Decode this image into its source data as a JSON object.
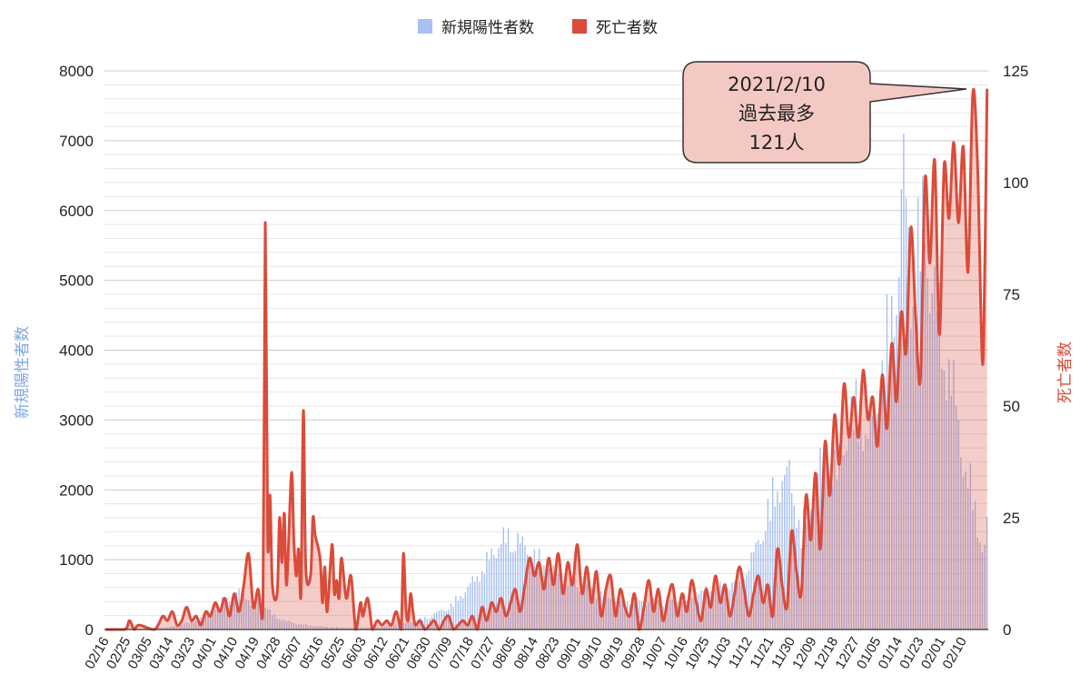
{
  "chart_data": {
    "type": "bar+line",
    "title": "",
    "legend": {
      "placement": "top-center",
      "items": [
        {
          "name": "新規陽性者数",
          "color": "#a9c1f2"
        },
        {
          "name": "死亡者数",
          "color": "#db4b3a"
        }
      ]
    },
    "y_left": {
      "label": "新規陽性者数",
      "color": "#7fa6e6",
      "min": 0,
      "max": 8000,
      "ticks": [
        "0",
        "1000",
        "2000",
        "3000",
        "4000",
        "5000",
        "6000",
        "7000",
        "8000"
      ]
    },
    "y_right": {
      "label": "死亡者数",
      "color": "#db4b3a",
      "min": 0,
      "max": 125,
      "ticks": [
        "0",
        "25",
        "50",
        "75",
        "100",
        "125"
      ]
    },
    "x_ticks": [
      "02/16",
      "02/25",
      "03/05",
      "03/14",
      "03/23",
      "04/01",
      "04/10",
      "04/19",
      "04/28",
      "05/07",
      "05/16",
      "05/25",
      "06/03",
      "06/12",
      "06/21",
      "06/30",
      "07/09",
      "07/18",
      "07/27",
      "08/05",
      "08/14",
      "08/23",
      "09/01",
      "09/10",
      "09/19",
      "09/28",
      "10/07",
      "10/16",
      "10/25",
      "11/03",
      "11/12",
      "11/21",
      "11/30",
      "12/09",
      "12/18",
      "12/27",
      "01/05",
      "01/14",
      "01/23",
      "02/01",
      "02/10"
    ],
    "grid": true,
    "series": [
      {
        "name": "新規陽性者数",
        "axis": "left",
        "chart": "bar",
        "anchors": [
          [
            0,
            0
          ],
          [
            12,
            5
          ],
          [
            22,
            25
          ],
          [
            30,
            60
          ],
          [
            38,
            150
          ],
          [
            45,
            350
          ],
          [
            52,
            550
          ],
          [
            58,
            650
          ],
          [
            62,
            400
          ],
          [
            65,
            500
          ],
          [
            70,
            250
          ],
          [
            75,
            150
          ],
          [
            80,
            100
          ],
          [
            88,
            60
          ],
          [
            95,
            40
          ],
          [
            105,
            30
          ],
          [
            115,
            40
          ],
          [
            125,
            100
          ],
          [
            135,
            200
          ],
          [
            145,
            400
          ],
          [
            152,
            700
          ],
          [
            158,
            1000
          ],
          [
            164,
            1400
          ],
          [
            168,
            1550
          ],
          [
            173,
            1500
          ],
          [
            178,
            1300
          ],
          [
            184,
            1100
          ],
          [
            190,
            950
          ],
          [
            197,
            800
          ],
          [
            205,
            620
          ],
          [
            215,
            500
          ],
          [
            225,
            470
          ],
          [
            235,
            450
          ],
          [
            245,
            560
          ],
          [
            252,
            650
          ],
          [
            258,
            700
          ],
          [
            262,
            770
          ],
          [
            266,
            900
          ],
          [
            270,
            1100
          ],
          [
            273,
            1350
          ],
          [
            276,
            1700
          ],
          [
            279,
            2100
          ],
          [
            282,
            2450
          ],
          [
            287,
            2600
          ],
          [
            292,
            1600
          ],
          [
            297,
            2400
          ],
          [
            303,
            3000
          ],
          [
            307,
            2600
          ],
          [
            311,
            3400
          ],
          [
            314,
            3600
          ],
          [
            317,
            3800
          ],
          [
            319,
            3200
          ],
          [
            322,
            3400
          ],
          [
            325,
            4200
          ],
          [
            327,
            4600
          ],
          [
            329,
            5000
          ],
          [
            331,
            5600
          ],
          [
            333,
            6200
          ],
          [
            334,
            7000
          ],
          [
            335,
            7600
          ],
          [
            336,
            7200
          ],
          [
            338,
            5800
          ],
          [
            340,
            6200
          ],
          [
            342,
            6600
          ],
          [
            344,
            6900
          ],
          [
            346,
            6000
          ],
          [
            349,
            5400
          ],
          [
            352,
            4700
          ],
          [
            355,
            4200
          ],
          [
            358,
            3500
          ],
          [
            361,
            2600
          ],
          [
            364,
            2300
          ],
          [
            366,
            1800
          ],
          [
            368,
            1400
          ],
          [
            369,
            1300
          ],
          [
            370,
            1800
          ]
        ]
      },
      {
        "name": "死亡者数",
        "axis": "right",
        "chart": "line-area",
        "points": [
          [
            0,
            0
          ],
          [
            8,
            0
          ],
          [
            10,
            2
          ],
          [
            12,
            0
          ],
          [
            14,
            1
          ],
          [
            20,
            0
          ],
          [
            22,
            1
          ],
          [
            24,
            3
          ],
          [
            26,
            2
          ],
          [
            28,
            4
          ],
          [
            30,
            1
          ],
          [
            32,
            2
          ],
          [
            34,
            5
          ],
          [
            36,
            2
          ],
          [
            38,
            3
          ],
          [
            40,
            1
          ],
          [
            42,
            4
          ],
          [
            44,
            3
          ],
          [
            46,
            6
          ],
          [
            48,
            4
          ],
          [
            50,
            7
          ],
          [
            52,
            3
          ],
          [
            54,
            8
          ],
          [
            56,
            4
          ],
          [
            58,
            10
          ],
          [
            60,
            17
          ],
          [
            62,
            5
          ],
          [
            64,
            9
          ],
          [
            66,
            3
          ],
          [
            67,
            91
          ],
          [
            68,
            20
          ],
          [
            69,
            30
          ],
          [
            70,
            10
          ],
          [
            72,
            8
          ],
          [
            73,
            25
          ],
          [
            74,
            15
          ],
          [
            75,
            26
          ],
          [
            76,
            10
          ],
          [
            78,
            35
          ],
          [
            79,
            20
          ],
          [
            80,
            12
          ],
          [
            81,
            18
          ],
          [
            82,
            8
          ],
          [
            83,
            49
          ],
          [
            84,
            14
          ],
          [
            86,
            12
          ],
          [
            87,
            25
          ],
          [
            88,
            21
          ],
          [
            90,
            16
          ],
          [
            91,
            6
          ],
          [
            92,
            14
          ],
          [
            93,
            4
          ],
          [
            95,
            19
          ],
          [
            96,
            8
          ],
          [
            97,
            11
          ],
          [
            98,
            7
          ],
          [
            99,
            16
          ],
          [
            101,
            7
          ],
          [
            103,
            12
          ],
          [
            105,
            0
          ],
          [
            107,
            6
          ],
          [
            108,
            3
          ],
          [
            110,
            7
          ],
          [
            112,
            0
          ],
          [
            114,
            2
          ],
          [
            116,
            1
          ],
          [
            118,
            2
          ],
          [
            120,
            1
          ],
          [
            122,
            4
          ],
          [
            124,
            0
          ],
          [
            125,
            17
          ],
          [
            126,
            5
          ],
          [
            127,
            2
          ],
          [
            128,
            8
          ],
          [
            129,
            4
          ],
          [
            130,
            1
          ],
          [
            132,
            2
          ],
          [
            134,
            0
          ],
          [
            136,
            1
          ],
          [
            138,
            2
          ],
          [
            140,
            0
          ],
          [
            142,
            2
          ],
          [
            144,
            3
          ],
          [
            146,
            0
          ],
          [
            148,
            1
          ],
          [
            150,
            2
          ],
          [
            152,
            1
          ],
          [
            154,
            3
          ],
          [
            156,
            0
          ],
          [
            158,
            5
          ],
          [
            160,
            2
          ],
          [
            162,
            6
          ],
          [
            164,
            4
          ],
          [
            166,
            7
          ],
          [
            168,
            3
          ],
          [
            170,
            6
          ],
          [
            172,
            9
          ],
          [
            174,
            4
          ],
          [
            176,
            10
          ],
          [
            178,
            16
          ],
          [
            180,
            12
          ],
          [
            182,
            15
          ],
          [
            184,
            9
          ],
          [
            186,
            16
          ],
          [
            188,
            10
          ],
          [
            190,
            17
          ],
          [
            192,
            8
          ],
          [
            194,
            15
          ],
          [
            196,
            10
          ],
          [
            198,
            19
          ],
          [
            200,
            8
          ],
          [
            202,
            14
          ],
          [
            204,
            6
          ],
          [
            206,
            13
          ],
          [
            208,
            3
          ],
          [
            210,
            9
          ],
          [
            212,
            12
          ],
          [
            214,
            3
          ],
          [
            216,
            9
          ],
          [
            218,
            5
          ],
          [
            220,
            3
          ],
          [
            222,
            8
          ],
          [
            224,
            0
          ],
          [
            226,
            5
          ],
          [
            228,
            11
          ],
          [
            230,
            4
          ],
          [
            232,
            9
          ],
          [
            234,
            2
          ],
          [
            236,
            7
          ],
          [
            238,
            10
          ],
          [
            240,
            3
          ],
          [
            242,
            8
          ],
          [
            244,
            4
          ],
          [
            246,
            11
          ],
          [
            248,
            6
          ],
          [
            250,
            2
          ],
          [
            252,
            9
          ],
          [
            254,
            5
          ],
          [
            256,
            12
          ],
          [
            258,
            6
          ],
          [
            260,
            10
          ],
          [
            262,
            3
          ],
          [
            264,
            8
          ],
          [
            266,
            14
          ],
          [
            268,
            9
          ],
          [
            270,
            3
          ],
          [
            272,
            8
          ],
          [
            274,
            12
          ],
          [
            276,
            6
          ],
          [
            278,
            10
          ],
          [
            280,
            3
          ],
          [
            282,
            18
          ],
          [
            284,
            10
          ],
          [
            286,
            5
          ],
          [
            288,
            22
          ],
          [
            290,
            13
          ],
          [
            292,
            8
          ],
          [
            294,
            30
          ],
          [
            296,
            20
          ],
          [
            298,
            35
          ],
          [
            300,
            18
          ],
          [
            302,
            42
          ],
          [
            304,
            30
          ],
          [
            306,
            48
          ],
          [
            308,
            37
          ],
          [
            310,
            55
          ],
          [
            312,
            43
          ],
          [
            314,
            52
          ],
          [
            316,
            43
          ],
          [
            318,
            58
          ],
          [
            320,
            47
          ],
          [
            322,
            52
          ],
          [
            324,
            41
          ],
          [
            326,
            57
          ],
          [
            328,
            45
          ],
          [
            330,
            64
          ],
          [
            332,
            51
          ],
          [
            334,
            71
          ],
          [
            336,
            62
          ],
          [
            338,
            90
          ],
          [
            340,
            70
          ],
          [
            342,
            56
          ],
          [
            344,
            101
          ],
          [
            346,
            82
          ],
          [
            348,
            105
          ],
          [
            350,
            66
          ],
          [
            352,
            104
          ],
          [
            354,
            92
          ],
          [
            356,
            109
          ],
          [
            358,
            91
          ],
          [
            360,
            108
          ],
          [
            362,
            80
          ],
          [
            364,
            120
          ],
          [
            366,
            104
          ],
          [
            368,
            60
          ],
          [
            369,
            80
          ],
          [
            370,
            121
          ]
        ]
      }
    ],
    "annotations": [
      {
        "text_lines": [
          "2021/2/10",
          "過去最多",
          "121人"
        ],
        "points_to": {
          "series": "死亡者数",
          "x_index": 370,
          "value": 121
        }
      }
    ]
  }
}
